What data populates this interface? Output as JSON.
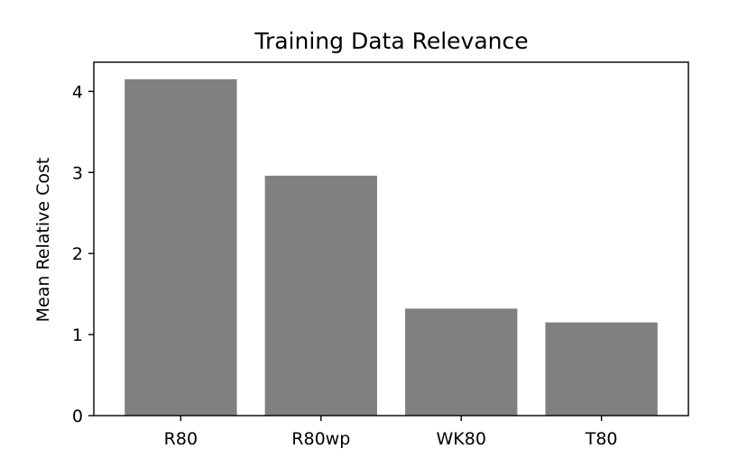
{
  "chart_data": {
    "type": "bar",
    "title": "Training Data Relevance",
    "xlabel": "",
    "ylabel": "Mean Relative Cost",
    "categories": [
      "R80",
      "R80wp",
      "WK80",
      "T80"
    ],
    "values": [
      4.15,
      2.96,
      1.32,
      1.15
    ],
    "ylim": [
      0,
      4.36
    ],
    "yticks": [
      0,
      1,
      2,
      3,
      4
    ],
    "bar_color": "#808080",
    "grid": false,
    "legend": "none"
  }
}
